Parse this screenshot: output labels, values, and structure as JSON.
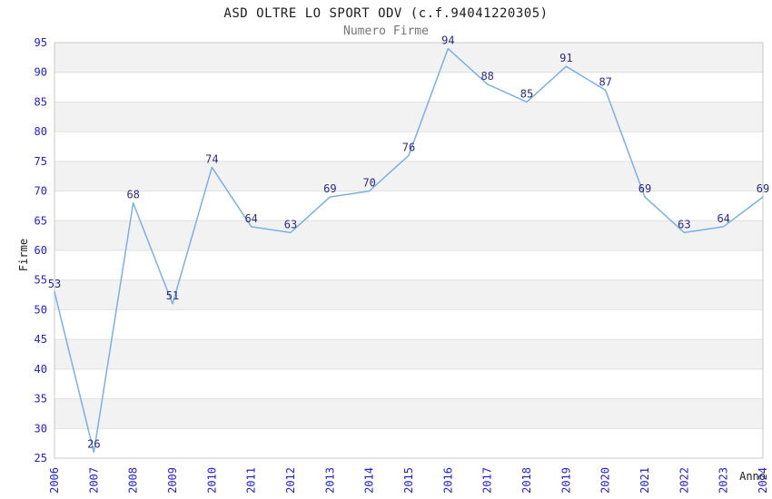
{
  "chart_data": {
    "type": "line",
    "title": "ASD OLTRE LO SPORT ODV (c.f.94041220305)",
    "subtitle": "Numero Firme",
    "xlabel": "Anno",
    "ylabel": "Firme",
    "x": [
      "2006",
      "2007",
      "2008",
      "2009",
      "2010",
      "2011",
      "2012",
      "2013",
      "2014",
      "2015",
      "2016",
      "2017",
      "2018",
      "2019",
      "2020",
      "2021",
      "2022",
      "2023",
      "2024"
    ],
    "series": [
      {
        "name": "Numero Firme",
        "values": [
          53,
          26,
          68,
          51,
          74,
          64,
          63,
          69,
          70,
          76,
          94,
          88,
          85,
          91,
          87,
          69,
          63,
          64,
          69
        ]
      }
    ],
    "ylim": [
      25,
      95
    ],
    "ytick_step": 5,
    "grid": "horizontal",
    "background_bands": true,
    "point_labels": true,
    "legend_position": "none",
    "colors": {
      "line": "#7cb0e3",
      "tick_label": "#2222cc",
      "point_label": "#2b2b85",
      "band": "#f2f2f2",
      "gridline": "#e0e0e0",
      "plot_border": "#c8c8c8",
      "title": "#1c1c1c",
      "subtitle": "#757575",
      "axis_title": "#1c1c1c"
    }
  }
}
